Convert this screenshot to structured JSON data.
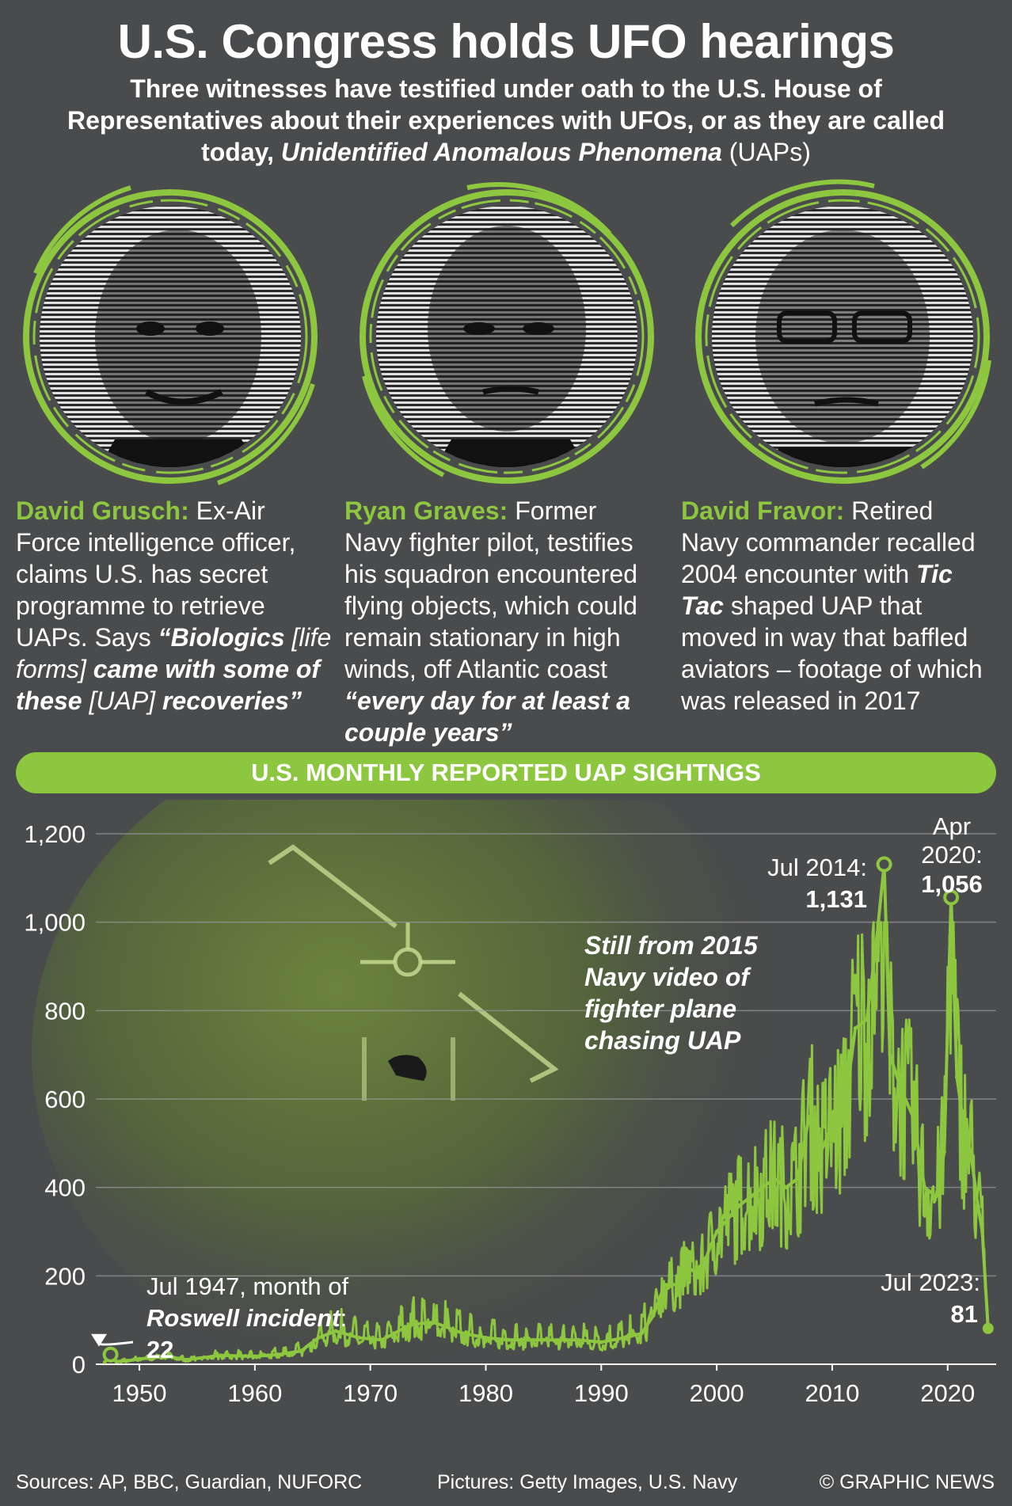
{
  "header": {
    "title": "U.S. Congress holds UFO hearings",
    "subtitle_1": "Three witnesses have testified under oath to the U.S. House of Representatives about their experiences with UFOs, or as they are called today, ",
    "subtitle_italic": "Unidentified Anomalous Phenomena",
    "subtitle_2": " (UAPs)"
  },
  "witnesses": [
    {
      "name": "David Grusch:",
      "text_1": " Ex-Air Force intelligence officer, claims U.S. has secret programme to retrieve UAPs. Says ",
      "quote_1": "“Biologics ",
      "bracket_1": "[life forms]",
      "quote_2": " came with some of these ",
      "bracket_2": "[UAP]",
      "quote_3": " recoveries”"
    },
    {
      "name": "Ryan Graves:",
      "text_1": " Former Navy fighter pilot, testifies his squadron encountered flying objects, which could remain stationary in high winds, off Atlantic coast ",
      "quote_1": "“every day for at least a couple years”"
    },
    {
      "name": "David Fravor:",
      "text_1": " Retired Navy commander recalled 2004 encounter with ",
      "tic": "Tic Tac",
      "text_2": " shaped UAP that moved in way that baffled aviators – footage of which was released in 2017"
    }
  ],
  "banner": "U.S. MONTHLY REPORTED UAP SIGHTNGS",
  "photo_caption": [
    "Still from 2015",
    "Navy video of",
    "fighter plane",
    "chasing UAP"
  ],
  "chart_data": {
    "type": "line",
    "title": "U.S. MONTHLY REPORTED UAP SIGHTNGS",
    "xlabel": "",
    "ylabel": "",
    "xlim": [
      1946.5,
      2024.2
    ],
    "ylim": [
      0,
      1200
    ],
    "x_ticks": [
      "1950",
      "1960",
      "1970",
      "1980",
      "1990",
      "2000",
      "2010",
      "2020"
    ],
    "y_ticks": [
      "0",
      "200",
      "400",
      "600",
      "800",
      "1,000",
      "1,200"
    ],
    "grid": true,
    "series_color": "#8dc63f",
    "points": [
      [
        1947.0,
        5
      ],
      [
        1947.5,
        22
      ],
      [
        1948.0,
        6
      ],
      [
        1949.0,
        8
      ],
      [
        1950.0,
        12
      ],
      [
        1952.5,
        18
      ],
      [
        1954.0,
        10
      ],
      [
        1957.0,
        20
      ],
      [
        1960.0,
        18
      ],
      [
        1962.0,
        22
      ],
      [
        1964.0,
        30
      ],
      [
        1965.5,
        60
      ],
      [
        1967.0,
        75
      ],
      [
        1969.0,
        60
      ],
      [
        1971.0,
        55
      ],
      [
        1973.5,
        90
      ],
      [
        1975.5,
        95
      ],
      [
        1978.0,
        70
      ],
      [
        1980.0,
        60
      ],
      [
        1982.0,
        55
      ],
      [
        1985.0,
        55
      ],
      [
        1988.0,
        55
      ],
      [
        1990.0,
        50
      ],
      [
        1992.0,
        60
      ],
      [
        1993.5,
        70
      ],
      [
        1994.5,
        110
      ],
      [
        1995.5,
        180
      ],
      [
        1996.5,
        180
      ],
      [
        1997.5,
        220
      ],
      [
        1998.5,
        200
      ],
      [
        1999.5,
        270
      ],
      [
        2000.0,
        300
      ],
      [
        2001.0,
        330
      ],
      [
        2002.0,
        360
      ],
      [
        2003.0,
        380
      ],
      [
        2004.0,
        400
      ],
      [
        2005.0,
        420
      ],
      [
        2006.0,
        400
      ],
      [
        2007.0,
        420
      ],
      [
        2008.0,
        560
      ],
      [
        2009.0,
        480
      ],
      [
        2010.0,
        540
      ],
      [
        2011.0,
        560
      ],
      [
        2012.0,
        760
      ],
      [
        2013.0,
        780
      ],
      [
        2013.8,
        950
      ],
      [
        2014.5,
        1131
      ],
      [
        2015.0,
        700
      ],
      [
        2016.0,
        620
      ],
      [
        2017.0,
        560
      ],
      [
        2018.0,
        400
      ],
      [
        2019.0,
        380
      ],
      [
        2019.7,
        480
      ],
      [
        2020.3,
        1056
      ],
      [
        2020.8,
        650
      ],
      [
        2021.5,
        520
      ],
      [
        2022.0,
        480
      ],
      [
        2022.5,
        380
      ],
      [
        2023.0,
        300
      ],
      [
        2023.5,
        81
      ]
    ],
    "annotations": [
      {
        "id": "roswell",
        "x": 1947.5,
        "y": 22,
        "line1": "Jul 1947, month of",
        "bold_italic": "Roswell incident",
        "colon": ":",
        "value": "22"
      },
      {
        "id": "jul2014",
        "x": 2014.5,
        "y": 1131,
        "label": "Jul 2014:",
        "value": "1,131"
      },
      {
        "id": "apr2020",
        "x": 2020.3,
        "y": 1056,
        "label_1": "Apr",
        "label_2": "2020:",
        "value": "1,056"
      },
      {
        "id": "jul2023",
        "x": 2023.5,
        "y": 81,
        "label": "Jul 2023:",
        "value": "81"
      }
    ]
  },
  "footer": {
    "sources": "Sources: AP, BBC, Guardian, NUFORC",
    "pictures": "Pictures: Getty Images, U.S. Navy",
    "credit": "© GRAPHIC NEWS"
  }
}
